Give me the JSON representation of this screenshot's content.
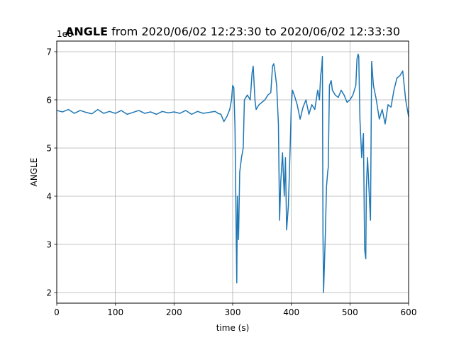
{
  "chart_data": {
    "type": "line",
    "title_bold": "ANGLE",
    "title_rest": " from 2020/06/02 12:23:30 to 2020/06/02 12:33:30",
    "xlabel": "time (s)",
    "ylabel": "ANGLE",
    "y_multiplier_label": "1e8",
    "xlim": [
      0,
      600
    ],
    "ylim": [
      1.78,
      7.22
    ],
    "xticks": [
      0,
      100,
      200,
      300,
      400,
      500,
      600
    ],
    "yticks": [
      2,
      3,
      4,
      5,
      6,
      7
    ],
    "grid": true,
    "line_color": "#1f77b4",
    "series": [
      {
        "x": [
          0,
          10,
          20,
          30,
          40,
          50,
          60,
          70,
          80,
          90,
          100,
          110,
          120,
          130,
          140,
          150,
          160,
          170,
          180,
          190,
          200,
          210,
          220,
          230,
          240,
          250,
          260,
          270,
          275,
          280,
          285,
          290,
          295,
          298,
          300,
          302,
          304,
          306,
          307,
          308,
          310,
          312,
          315,
          318,
          320,
          325,
          330,
          333,
          335,
          338,
          340,
          345,
          350,
          355,
          360,
          365,
          368,
          370,
          372,
          375,
          378,
          380,
          382,
          385,
          388,
          390,
          392,
          395,
          398,
          400,
          402,
          405,
          410,
          415,
          420,
          425,
          430,
          435,
          440,
          445,
          448,
          450,
          452,
          453,
          454,
          455,
          456,
          458,
          460,
          462,
          463,
          465,
          468,
          470,
          475,
          480,
          485,
          490,
          495,
          500,
          505,
          510,
          512,
          514,
          515,
          517,
          520,
          523,
          525,
          527,
          528,
          530,
          533,
          535,
          537,
          540,
          545,
          550,
          555,
          560,
          565,
          570,
          575,
          580,
          585,
          590,
          595,
          600
        ],
        "values": [
          5.78,
          5.75,
          5.8,
          5.72,
          5.78,
          5.74,
          5.71,
          5.8,
          5.72,
          5.76,
          5.72,
          5.78,
          5.7,
          5.74,
          5.78,
          5.72,
          5.75,
          5.7,
          5.76,
          5.73,
          5.75,
          5.72,
          5.78,
          5.7,
          5.76,
          5.72,
          5.74,
          5.76,
          5.72,
          5.7,
          5.55,
          5.65,
          5.8,
          6.0,
          6.3,
          6.25,
          5.4,
          3.2,
          2.2,
          4.0,
          3.1,
          4.5,
          4.8,
          5.0,
          6.0,
          6.1,
          6.0,
          6.55,
          6.7,
          6.0,
          5.8,
          5.9,
          5.95,
          6.0,
          6.1,
          6.15,
          6.7,
          6.75,
          6.6,
          6.3,
          5.5,
          3.5,
          4.3,
          4.9,
          4.0,
          4.8,
          3.3,
          3.8,
          5.0,
          5.9,
          6.2,
          6.1,
          5.9,
          5.6,
          5.85,
          6.0,
          5.7,
          5.9,
          5.8,
          6.2,
          6.0,
          6.5,
          6.7,
          6.9,
          3.2,
          2.0,
          2.4,
          3.2,
          4.2,
          4.5,
          4.6,
          6.3,
          6.4,
          6.2,
          6.1,
          6.05,
          6.2,
          6.1,
          5.95,
          6.0,
          6.1,
          6.3,
          6.85,
          6.95,
          6.9,
          5.6,
          4.8,
          5.3,
          2.9,
          2.7,
          4.2,
          4.8,
          4.0,
          3.5,
          6.8,
          6.3,
          6.0,
          5.6,
          5.8,
          5.5,
          5.9,
          5.85,
          6.2,
          6.45,
          6.5,
          6.6,
          6.0,
          5.65
        ]
      }
    ]
  }
}
